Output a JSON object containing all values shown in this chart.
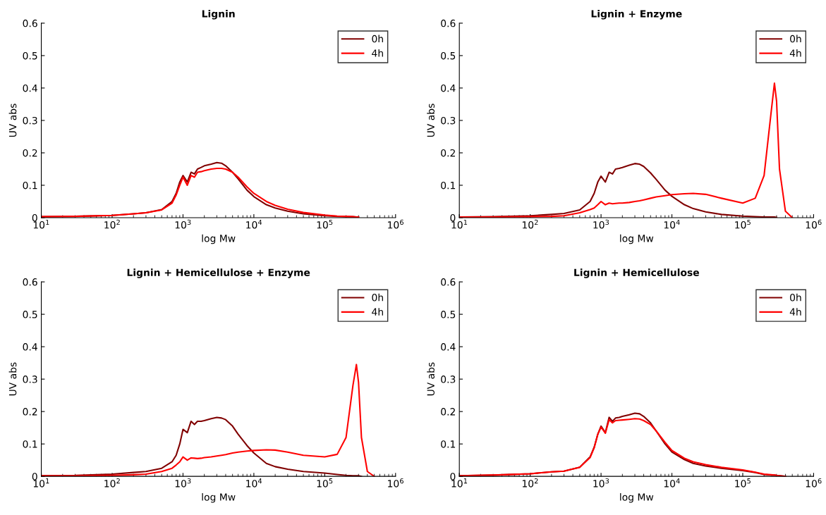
{
  "chart_data": [
    {
      "type": "line",
      "title": "Lignin",
      "xlabel": "log Mw",
      "ylabel": "UV abs",
      "log": "x",
      "legend": "top right",
      "grid": false,
      "x": [
        10,
        30,
        100,
        200,
        300,
        500,
        700,
        800,
        900,
        1000,
        1150,
        1300,
        1450,
        1600,
        1800,
        2000,
        2500,
        3000,
        3500,
        4000,
        5000,
        6000,
        8000,
        10000,
        15000,
        20000,
        30000,
        50000,
        100000,
        150000,
        200000,
        250000,
        280000,
        300000
      ],
      "series": [
        {
          "name": "0h",
          "color": "#800000",
          "values": [
            0.003,
            0.004,
            0.007,
            0.012,
            0.015,
            0.025,
            0.05,
            0.075,
            0.11,
            0.13,
            0.11,
            0.14,
            0.135,
            0.15,
            0.155,
            0.16,
            0.165,
            0.17,
            0.168,
            0.16,
            0.14,
            0.12,
            0.085,
            0.065,
            0.04,
            0.03,
            0.02,
            0.012,
            0.006,
            0.004,
            0.003,
            0.003,
            0.002,
            0.002
          ]
        },
        {
          "name": "4h",
          "color": "#ff0000",
          "values": [
            0.003,
            0.004,
            0.007,
            0.012,
            0.015,
            0.024,
            0.045,
            0.07,
            0.1,
            0.125,
            0.1,
            0.13,
            0.125,
            0.14,
            0.142,
            0.145,
            0.15,
            0.152,
            0.152,
            0.15,
            0.14,
            0.125,
            0.095,
            0.075,
            0.05,
            0.038,
            0.026,
            0.016,
            0.008,
            0.005,
            0.004,
            0.003,
            0.002,
            0.002
          ]
        }
      ],
      "xlim": [
        10,
        1000000
      ],
      "xticks": [
        {
          "value": 10,
          "label": "10$^{1}$"
        },
        {
          "value": 100,
          "label": "10$^{2}$"
        },
        {
          "value": 1000,
          "label": "10$^{3}$"
        },
        {
          "value": 10000,
          "label": "10$^{4}$"
        },
        {
          "value": 100000,
          "label": "10$^{5}$"
        },
        {
          "value": 1000000,
          "label": "10$^{6}$"
        }
      ],
      "ylim": [
        0,
        0.6
      ],
      "yticks": [
        0,
        0.1,
        0.2,
        0.3,
        0.4,
        0.5,
        0.6
      ]
    },
    {
      "type": "line",
      "title": "Lignin + Enzyme",
      "xlabel": "log Mw",
      "ylabel": "UV abs",
      "log": "x",
      "legend": "top right",
      "grid": false,
      "x": [
        10,
        30,
        100,
        200,
        300,
        500,
        700,
        800,
        900,
        1000,
        1150,
        1300,
        1450,
        1600,
        1800,
        2000,
        2500,
        3000,
        3500,
        4000,
        5000,
        6000,
        8000,
        10000,
        15000,
        20000,
        30000,
        50000,
        100000,
        150000,
        200000,
        250000,
        280000,
        300000,
        330000,
        400000,
        500000
      ],
      "series": [
        {
          "name": "0h",
          "color": "#800000",
          "values": [
            0.002,
            0.003,
            0.006,
            0.01,
            0.013,
            0.024,
            0.05,
            0.075,
            0.11,
            0.128,
            0.11,
            0.14,
            0.135,
            0.15,
            0.152,
            0.155,
            0.162,
            0.167,
            0.165,
            0.158,
            0.138,
            0.118,
            0.085,
            0.066,
            0.04,
            0.028,
            0.018,
            0.01,
            0.005,
            0.003,
            0.002,
            0.002,
            0.002,
            0.001,
            null,
            null,
            null
          ]
        },
        {
          "name": "4h",
          "color": "#ff0000",
          "values": [
            0.002,
            0.002,
            0.003,
            0.004,
            0.006,
            0.015,
            0.025,
            0.03,
            0.04,
            0.05,
            0.04,
            0.045,
            0.043,
            0.044,
            0.045,
            0.045,
            0.047,
            0.05,
            0.052,
            0.055,
            0.06,
            0.064,
            0.068,
            0.071,
            0.074,
            0.075,
            0.072,
            0.06,
            0.045,
            0.06,
            0.13,
            0.32,
            0.415,
            0.36,
            0.15,
            0.02,
            0.0
          ]
        }
      ],
      "xlim": [
        10,
        1000000
      ],
      "xticks": [
        {
          "value": 10,
          "label": "10$^{1}$"
        },
        {
          "value": 100,
          "label": "10$^{2}$"
        },
        {
          "value": 1000,
          "label": "10$^{3}$"
        },
        {
          "value": 10000,
          "label": "10$^{4}$"
        },
        {
          "value": 100000,
          "label": "10$^{5}$"
        },
        {
          "value": 1000000,
          "label": "10$^{6}$"
        }
      ],
      "ylim": [
        0,
        0.6
      ],
      "yticks": [
        0,
        0.1,
        0.2,
        0.3,
        0.4,
        0.5,
        0.6
      ]
    },
    {
      "type": "line",
      "title": "Lignin + Hemicellulose + Enzyme",
      "xlabel": "log Mw",
      "ylabel": "UV abs",
      "log": "x",
      "legend": "top right",
      "grid": false,
      "x": [
        10,
        30,
        100,
        200,
        300,
        500,
        700,
        800,
        900,
        1000,
        1150,
        1300,
        1450,
        1600,
        1800,
        2000,
        2500,
        3000,
        3500,
        4000,
        5000,
        6000,
        8000,
        10000,
        15000,
        20000,
        30000,
        50000,
        100000,
        150000,
        200000,
        250000,
        280000,
        300000,
        330000,
        400000,
        500000
      ],
      "series": [
        {
          "name": "0h",
          "color": "#800000",
          "values": [
            0.002,
            0.003,
            0.007,
            0.012,
            0.015,
            0.025,
            0.045,
            0.065,
            0.1,
            0.145,
            0.135,
            0.17,
            0.16,
            0.17,
            0.17,
            0.172,
            0.178,
            0.182,
            0.18,
            0.175,
            0.155,
            0.13,
            0.095,
            0.072,
            0.04,
            0.03,
            0.022,
            0.015,
            0.01,
            0.006,
            0.003,
            0.002,
            0.002,
            0.002,
            0.0,
            null,
            null
          ]
        },
        {
          "name": "4h",
          "color": "#ff0000",
          "values": [
            0.002,
            0.002,
            0.003,
            0.005,
            0.007,
            0.015,
            0.025,
            0.035,
            0.045,
            0.06,
            0.05,
            0.057,
            0.056,
            0.055,
            0.056,
            0.058,
            0.06,
            0.063,
            0.065,
            0.067,
            0.072,
            0.075,
            0.078,
            0.08,
            0.082,
            0.081,
            0.075,
            0.065,
            0.06,
            0.068,
            0.12,
            0.28,
            0.345,
            0.29,
            0.12,
            0.015,
            0.0
          ]
        }
      ],
      "xlim": [
        10,
        1000000
      ],
      "xticks": [
        {
          "value": 10,
          "label": "10$^{1}$"
        },
        {
          "value": 100,
          "label": "10$^{2}$"
        },
        {
          "value": 1000,
          "label": "10$^{3}$"
        },
        {
          "value": 10000,
          "label": "10$^{4}$"
        },
        {
          "value": 100000,
          "label": "10$^{5}$"
        },
        {
          "value": 1000000,
          "label": "10$^{6}$"
        }
      ],
      "ylim": [
        0,
        0.6
      ],
      "yticks": [
        0,
        0.1,
        0.2,
        0.3,
        0.4,
        0.5,
        0.6
      ]
    },
    {
      "type": "line",
      "title": "Lignin + Hemicellulose",
      "xlabel": "log Mw",
      "ylabel": "UV abs",
      "log": "x",
      "legend": "top right",
      "grid": false,
      "x": [
        10,
        30,
        100,
        200,
        300,
        500,
        700,
        800,
        900,
        1000,
        1150,
        1300,
        1450,
        1600,
        1800,
        2000,
        2500,
        3000,
        3500,
        4000,
        5000,
        6000,
        8000,
        10000,
        15000,
        20000,
        30000,
        50000,
        100000,
        150000,
        200000,
        250000,
        280000,
        300000,
        330000,
        400000
      ],
      "series": [
        {
          "name": "0h",
          "color": "#800000",
          "values": [
            0.002,
            0.004,
            0.008,
            0.014,
            0.016,
            0.028,
            0.06,
            0.09,
            0.13,
            0.155,
            0.135,
            0.182,
            0.17,
            0.18,
            0.182,
            0.185,
            0.19,
            0.195,
            0.193,
            0.185,
            0.165,
            0.14,
            0.1,
            0.075,
            0.052,
            0.04,
            0.032,
            0.025,
            0.018,
            0.012,
            0.006,
            0.004,
            0.004,
            0.003,
            0.002,
            0.0
          ]
        },
        {
          "name": "4h",
          "color": "#ff0000",
          "values": [
            0.002,
            0.004,
            0.008,
            0.014,
            0.016,
            0.028,
            0.058,
            0.088,
            0.13,
            0.152,
            0.133,
            0.175,
            0.165,
            0.172,
            0.173,
            0.174,
            0.176,
            0.178,
            0.177,
            0.172,
            0.16,
            0.14,
            0.105,
            0.08,
            0.056,
            0.045,
            0.036,
            0.028,
            0.02,
            0.013,
            0.007,
            0.005,
            0.004,
            0.003,
            0.002,
            0.0
          ]
        }
      ],
      "xlim": [
        10,
        1000000
      ],
      "xticks": [
        {
          "value": 10,
          "label": "10$^{1}$"
        },
        {
          "value": 100,
          "label": "10$^{2}$"
        },
        {
          "value": 1000,
          "label": "10$^{3}$"
        },
        {
          "value": 10000,
          "label": "10$^{4}$"
        },
        {
          "value": 100000,
          "label": "10$^{5}$"
        },
        {
          "value": 1000000,
          "label": "10$^{6}$"
        }
      ],
      "ylim": [
        0,
        0.6
      ],
      "yticks": [
        0,
        0.1,
        0.2,
        0.3,
        0.4,
        0.5,
        0.6
      ]
    }
  ]
}
